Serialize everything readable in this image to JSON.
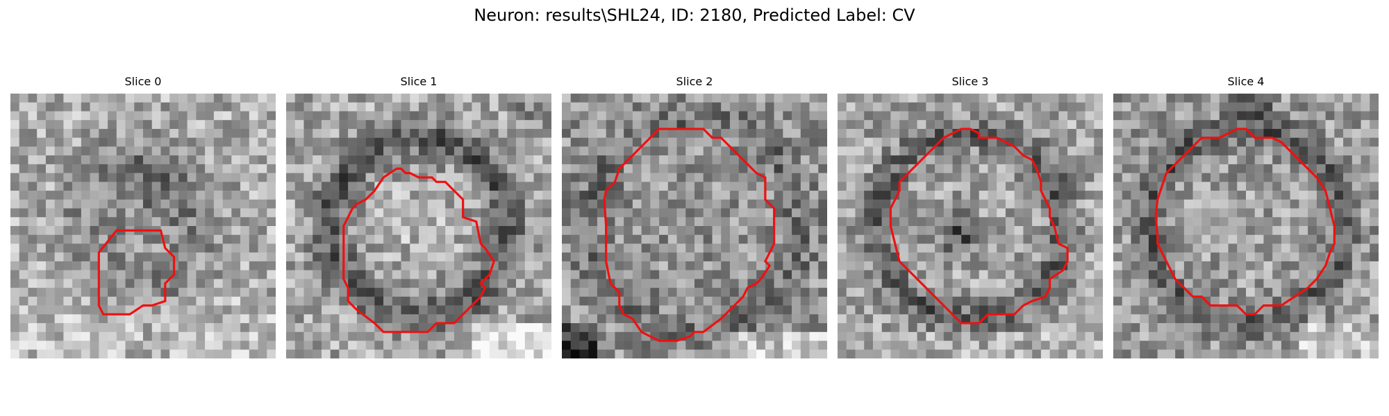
{
  "figure": {
    "title": "Neuron: results\\SHL24, ID: 2180, Predicted Label: CV"
  },
  "slices": [
    {
      "label": "Slice 0"
    },
    {
      "label": "Slice 1"
    },
    {
      "label": "Slice 2"
    },
    {
      "label": "Slice 3"
    },
    {
      "label": "Slice 4"
    }
  ],
  "colors": {
    "contour": "#ee1111",
    "background": "#ffffff"
  }
}
